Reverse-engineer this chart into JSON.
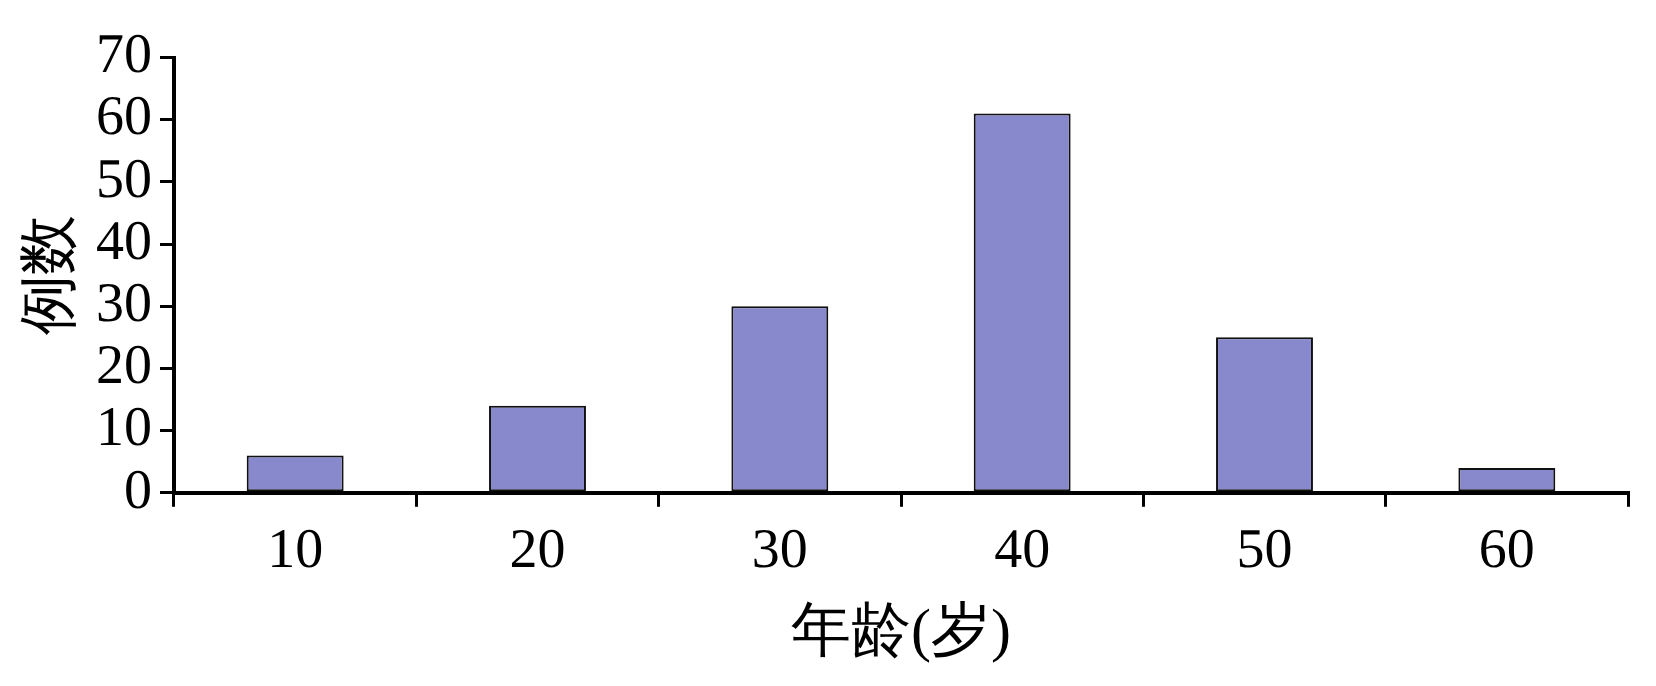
{
  "chart_data": {
    "type": "bar",
    "xlabel": "年龄(岁)",
    "ylabel": "例数",
    "categories": [
      "10",
      "20",
      "30",
      "40",
      "50",
      "60"
    ],
    "values": [
      6,
      14,
      30,
      61,
      25,
      4
    ],
    "color": "#8889cc",
    "ylim": [
      0,
      70
    ],
    "yticks": [
      0,
      10,
      20,
      30,
      40,
      50,
      60,
      70
    ],
    "grid": false,
    "legend": false
  }
}
